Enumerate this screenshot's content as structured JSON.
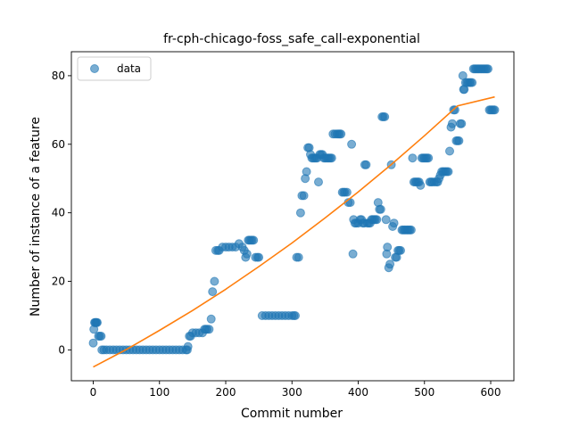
{
  "chart_data": {
    "type": "scatter",
    "title": "fr-cph-chicago-foss_safe_call-exponential",
    "xlabel": "Commit number",
    "ylabel": "Number of instance of a feature",
    "xlim": [
      -33,
      635
    ],
    "ylim": [
      -9,
      87
    ],
    "xticks": [
      0,
      100,
      200,
      300,
      400,
      500,
      600
    ],
    "yticks": [
      0,
      20,
      40,
      60,
      80
    ],
    "grid": false,
    "legend": {
      "position": "top-left",
      "entries": [
        "data"
      ]
    },
    "colors": {
      "data": "#1f77b4",
      "fit": "#ff7f0e"
    },
    "series": [
      {
        "name": "data",
        "kind": "scatter",
        "points": [
          [
            0,
            2
          ],
          [
            1,
            6
          ],
          [
            2,
            8
          ],
          [
            3,
            8
          ],
          [
            4,
            8
          ],
          [
            5,
            8
          ],
          [
            6,
            8
          ],
          [
            8,
            4
          ],
          [
            10,
            4
          ],
          [
            12,
            4
          ],
          [
            13,
            0
          ],
          [
            16,
            0
          ],
          [
            20,
            0
          ],
          [
            25,
            0
          ],
          [
            30,
            0
          ],
          [
            35,
            0
          ],
          [
            40,
            0
          ],
          [
            45,
            0
          ],
          [
            50,
            0
          ],
          [
            55,
            0
          ],
          [
            60,
            0
          ],
          [
            65,
            0
          ],
          [
            70,
            0
          ],
          [
            75,
            0
          ],
          [
            80,
            0
          ],
          [
            85,
            0
          ],
          [
            90,
            0
          ],
          [
            95,
            0
          ],
          [
            100,
            0
          ],
          [
            105,
            0
          ],
          [
            110,
            0
          ],
          [
            115,
            0
          ],
          [
            120,
            0
          ],
          [
            125,
            0
          ],
          [
            130,
            0
          ],
          [
            135,
            0
          ],
          [
            140,
            0
          ],
          [
            142,
            0
          ],
          [
            143,
            1
          ],
          [
            145,
            4
          ],
          [
            147,
            4
          ],
          [
            150,
            5
          ],
          [
            155,
            5
          ],
          [
            160,
            5
          ],
          [
            165,
            5
          ],
          [
            168,
            6
          ],
          [
            170,
            6
          ],
          [
            172,
            6
          ],
          [
            175,
            6
          ],
          [
            178,
            9
          ],
          [
            180,
            17
          ],
          [
            183,
            20
          ],
          [
            185,
            29
          ],
          [
            188,
            29
          ],
          [
            190,
            29
          ],
          [
            195,
            30
          ],
          [
            200,
            30
          ],
          [
            205,
            30
          ],
          [
            210,
            30
          ],
          [
            215,
            30
          ],
          [
            220,
            31
          ],
          [
            225,
            30
          ],
          [
            228,
            29
          ],
          [
            230,
            27
          ],
          [
            232,
            28
          ],
          [
            234,
            32
          ],
          [
            236,
            32
          ],
          [
            238,
            32
          ],
          [
            240,
            32
          ],
          [
            242,
            32
          ],
          [
            245,
            27
          ],
          [
            248,
            27
          ],
          [
            250,
            27
          ],
          [
            255,
            10
          ],
          [
            260,
            10
          ],
          [
            265,
            10
          ],
          [
            270,
            10
          ],
          [
            275,
            10
          ],
          [
            280,
            10
          ],
          [
            285,
            10
          ],
          [
            290,
            10
          ],
          [
            295,
            10
          ],
          [
            300,
            10
          ],
          [
            303,
            10
          ],
          [
            305,
            10
          ],
          [
            307,
            27
          ],
          [
            310,
            27
          ],
          [
            313,
            40
          ],
          [
            315,
            45
          ],
          [
            318,
            45
          ],
          [
            320,
            50
          ],
          [
            322,
            52
          ],
          [
            324,
            59
          ],
          [
            326,
            59
          ],
          [
            328,
            57
          ],
          [
            330,
            56
          ],
          [
            332,
            56
          ],
          [
            334,
            56
          ],
          [
            336,
            56
          ],
          [
            338,
            56
          ],
          [
            340,
            49
          ],
          [
            342,
            57
          ],
          [
            344,
            57
          ],
          [
            346,
            57
          ],
          [
            348,
            56
          ],
          [
            350,
            56
          ],
          [
            352,
            56
          ],
          [
            354,
            56
          ],
          [
            356,
            56
          ],
          [
            358,
            56
          ],
          [
            360,
            56
          ],
          [
            362,
            63
          ],
          [
            365,
            63
          ],
          [
            368,
            63
          ],
          [
            370,
            63
          ],
          [
            372,
            63
          ],
          [
            374,
            63
          ],
          [
            376,
            46
          ],
          [
            378,
            46
          ],
          [
            380,
            46
          ],
          [
            383,
            46
          ],
          [
            385,
            43
          ],
          [
            388,
            43
          ],
          [
            390,
            60
          ],
          [
            392,
            28
          ],
          [
            393,
            38
          ],
          [
            395,
            37
          ],
          [
            397,
            37
          ],
          [
            400,
            37
          ],
          [
            403,
            38
          ],
          [
            405,
            38
          ],
          [
            407,
            37
          ],
          [
            409,
            37
          ],
          [
            410,
            54
          ],
          [
            412,
            54
          ],
          [
            414,
            37
          ],
          [
            416,
            37
          ],
          [
            418,
            37
          ],
          [
            420,
            38
          ],
          [
            422,
            38
          ],
          [
            424,
            38
          ],
          [
            426,
            38
          ],
          [
            428,
            38
          ],
          [
            430,
            43
          ],
          [
            432,
            41
          ],
          [
            434,
            41
          ],
          [
            436,
            68
          ],
          [
            438,
            68
          ],
          [
            440,
            68
          ],
          [
            442,
            38
          ],
          [
            443,
            28
          ],
          [
            444,
            30
          ],
          [
            446,
            24
          ],
          [
            448,
            25
          ],
          [
            450,
            54
          ],
          [
            452,
            36
          ],
          [
            454,
            37
          ],
          [
            456,
            27
          ],
          [
            458,
            27
          ],
          [
            460,
            29
          ],
          [
            462,
            29
          ],
          [
            464,
            29
          ],
          [
            466,
            35
          ],
          [
            468,
            35
          ],
          [
            470,
            35
          ],
          [
            472,
            35
          ],
          [
            474,
            35
          ],
          [
            476,
            35
          ],
          [
            478,
            35
          ],
          [
            480,
            35
          ],
          [
            482,
            56
          ],
          [
            484,
            49
          ],
          [
            486,
            49
          ],
          [
            488,
            49
          ],
          [
            490,
            49
          ],
          [
            492,
            49
          ],
          [
            494,
            48
          ],
          [
            496,
            56
          ],
          [
            498,
            56
          ],
          [
            500,
            56
          ],
          [
            502,
            56
          ],
          [
            504,
            56
          ],
          [
            506,
            56
          ],
          [
            508,
            49
          ],
          [
            510,
            49
          ],
          [
            512,
            49
          ],
          [
            515,
            49
          ],
          [
            518,
            49
          ],
          [
            520,
            49
          ],
          [
            522,
            50
          ],
          [
            524,
            51
          ],
          [
            526,
            52
          ],
          [
            528,
            52
          ],
          [
            530,
            52
          ],
          [
            532,
            52
          ],
          [
            534,
            52
          ],
          [
            536,
            52
          ],
          [
            538,
            58
          ],
          [
            540,
            65
          ],
          [
            542,
            66
          ],
          [
            544,
            70
          ],
          [
            546,
            70
          ],
          [
            548,
            61
          ],
          [
            550,
            61
          ],
          [
            552,
            61
          ],
          [
            554,
            66
          ],
          [
            556,
            66
          ],
          [
            558,
            80
          ],
          [
            559,
            76
          ],
          [
            560,
            76
          ],
          [
            562,
            78
          ],
          [
            564,
            78
          ],
          [
            566,
            78
          ],
          [
            568,
            78
          ],
          [
            570,
            78
          ],
          [
            572,
            78
          ],
          [
            574,
            82
          ],
          [
            576,
            82
          ],
          [
            578,
            82
          ],
          [
            580,
            82
          ],
          [
            582,
            82
          ],
          [
            584,
            82
          ],
          [
            586,
            82
          ],
          [
            588,
            82
          ],
          [
            590,
            82
          ],
          [
            592,
            82
          ],
          [
            594,
            82
          ],
          [
            596,
            82
          ],
          [
            598,
            70
          ],
          [
            600,
            70
          ],
          [
            602,
            70
          ],
          [
            604,
            70
          ],
          [
            606,
            70
          ]
        ]
      },
      {
        "name": "",
        "kind": "line",
        "x": [
          0,
          50,
          100,
          150,
          200,
          250,
          300,
          350,
          400,
          450,
          500,
          550,
          606
        ],
        "y": [
          -5,
          0.1,
          5.7,
          11.5,
          17.7,
          24.3,
          31.2,
          38.5,
          46.1,
          54.1,
          62.5,
          71.2,
          73.8
        ]
      }
    ]
  }
}
